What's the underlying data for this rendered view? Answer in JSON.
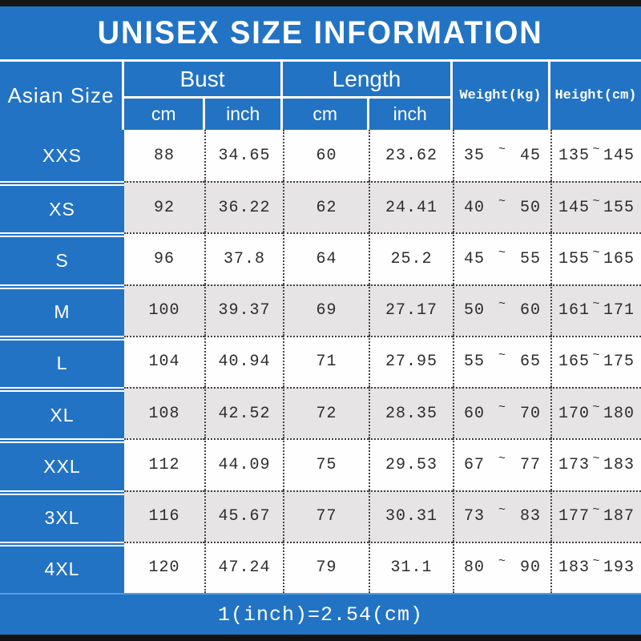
{
  "title": "UNISEX SIZE INFORMATION",
  "footer_note": "1(inch)=2.54(cm)",
  "colors": {
    "accent_blue": "#2273c4",
    "zebra_gray": "#e6e4e5",
    "bar_black": "#161616",
    "dotted_line": "#3f3f3f",
    "header_text": "#ffffff",
    "data_text": "#2d2d2d"
  },
  "table": {
    "range_separator": "~",
    "headers": {
      "size": "Asian Size",
      "bust": "Bust",
      "length": "Length",
      "cm": "cm",
      "inch": "inch",
      "weight": "Weight(kg)",
      "height": "Height(cm)"
    },
    "rows": [
      {
        "size": "XXS",
        "bust_cm": "88",
        "bust_inch": "34.65",
        "length_cm": "60",
        "length_inch": "23.62",
        "weight_min": "35",
        "weight_max": "45",
        "height_min": "135",
        "height_max": "145"
      },
      {
        "size": "XS",
        "bust_cm": "92",
        "bust_inch": "36.22",
        "length_cm": "62",
        "length_inch": "24.41",
        "weight_min": "40",
        "weight_max": "50",
        "height_min": "145",
        "height_max": "155"
      },
      {
        "size": "S",
        "bust_cm": "96",
        "bust_inch": "37.8",
        "length_cm": "64",
        "length_inch": "25.2",
        "weight_min": "45",
        "weight_max": "55",
        "height_min": "155",
        "height_max": "165"
      },
      {
        "size": "M",
        "bust_cm": "100",
        "bust_inch": "39.37",
        "length_cm": "69",
        "length_inch": "27.17",
        "weight_min": "50",
        "weight_max": "60",
        "height_min": "161",
        "height_max": "171"
      },
      {
        "size": "L",
        "bust_cm": "104",
        "bust_inch": "40.94",
        "length_cm": "71",
        "length_inch": "27.95",
        "weight_min": "55",
        "weight_max": "65",
        "height_min": "165",
        "height_max": "175"
      },
      {
        "size": "XL",
        "bust_cm": "108",
        "bust_inch": "42.52",
        "length_cm": "72",
        "length_inch": "28.35",
        "weight_min": "60",
        "weight_max": "70",
        "height_min": "170",
        "height_max": "180"
      },
      {
        "size": "XXL",
        "bust_cm": "112",
        "bust_inch": "44.09",
        "length_cm": "75",
        "length_inch": "29.53",
        "weight_min": "67",
        "weight_max": "77",
        "height_min": "173",
        "height_max": "183"
      },
      {
        "size": "3XL",
        "bust_cm": "116",
        "bust_inch": "45.67",
        "length_cm": "77",
        "length_inch": "30.31",
        "weight_min": "73",
        "weight_max": "83",
        "height_min": "177",
        "height_max": "187"
      },
      {
        "size": "4XL",
        "bust_cm": "120",
        "bust_inch": "47.24",
        "length_cm": "79",
        "length_inch": "31.1",
        "weight_min": "80",
        "weight_max": "90",
        "height_min": "183",
        "height_max": "193"
      }
    ]
  },
  "chart_data": {
    "type": "table",
    "title": "UNISEX SIZE INFORMATION",
    "columns": [
      "Asian Size",
      "Bust cm",
      "Bust inch",
      "Length cm",
      "Length inch",
      "Weight(kg)",
      "Height(cm)"
    ],
    "rows": [
      [
        "XXS",
        "88",
        "34.65",
        "60",
        "23.62",
        "35 ~ 45",
        "135 ~ 145"
      ],
      [
        "XS",
        "92",
        "36.22",
        "62",
        "24.41",
        "40 ~ 50",
        "145 ~ 155"
      ],
      [
        "S",
        "96",
        "37.8",
        "64",
        "25.2",
        "45 ~ 55",
        "155 ~ 165"
      ],
      [
        "M",
        "100",
        "39.37",
        "69",
        "27.17",
        "50 ~ 60",
        "161 ~ 171"
      ],
      [
        "L",
        "104",
        "40.94",
        "71",
        "27.95",
        "55 ~ 65",
        "165 ~ 175"
      ],
      [
        "XL",
        "108",
        "42.52",
        "72",
        "28.35",
        "60 ~ 70",
        "170 ~ 180"
      ],
      [
        "XXL",
        "112",
        "44.09",
        "75",
        "29.53",
        "67 ~ 77",
        "173 ~ 183"
      ],
      [
        "3XL",
        "116",
        "45.67",
        "77",
        "30.31",
        "73 ~ 83",
        "177 ~ 187"
      ],
      [
        "4XL",
        "120",
        "47.24",
        "79",
        "31.1",
        "80 ~ 90",
        "183 ~ 193"
      ]
    ],
    "footnote": "1(inch)=2.54(cm)"
  }
}
